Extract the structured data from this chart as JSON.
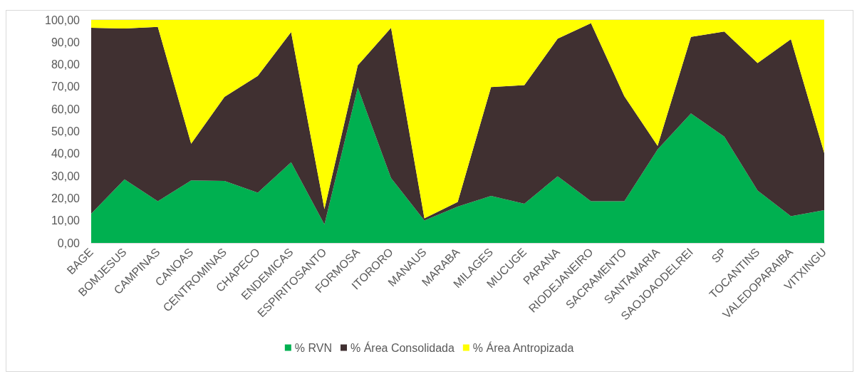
{
  "chart_data": {
    "type": "area",
    "stacked": true,
    "categories": [
      "BAGE",
      "BOMJESUS",
      "CAMPINAS",
      "CANOAS",
      "CENTROMINAS",
      "CHAPECO",
      "ENDEMICAS",
      "ESPIRITOSANTO",
      "FORMOSA",
      "ITORORO",
      "MANAUS",
      "MARABA",
      "MILAGES",
      "MUCUGE",
      "PARANA",
      "RIODEJANEIRO",
      "SACRAMENTO",
      "SANTAMARIA",
      "SAOJOAODELREI",
      "SP",
      "TOCANTINS",
      "VALEDOPARAIBA",
      "VITXINGU"
    ],
    "series": [
      {
        "name": "% RVN",
        "color": "#00b050",
        "values": [
          13.1,
          28.5,
          18.7,
          28.0,
          27.8,
          22.5,
          36.2,
          8.3,
          69.7,
          29.1,
          10.1,
          16.3,
          21.1,
          17.6,
          29.9,
          18.7,
          18.7,
          41.9,
          58.1,
          47.7,
          23.5,
          12.0,
          14.7
        ]
      },
      {
        "name": "% Área Consolidada",
        "color": "#403031",
        "values": [
          83.4,
          67.7,
          78.2,
          16.5,
          37.7,
          52.4,
          58.4,
          6.9,
          9.9,
          67.4,
          0.9,
          2.1,
          48.8,
          53.2,
          61.7,
          79.9,
          47.1,
          1.6,
          34.3,
          47.1,
          57.2,
          79.4,
          25.6
        ]
      },
      {
        "name": "% Área Antropizada",
        "color": "#ffff00",
        "values": [
          3.5,
          3.8,
          3.1,
          55.5,
          34.5,
          25.1,
          5.4,
          84.8,
          20.4,
          3.5,
          89.0,
          81.6,
          30.1,
          29.2,
          8.4,
          1.4,
          34.2,
          56.5,
          7.6,
          5.2,
          19.3,
          8.6,
          59.7
        ]
      }
    ],
    "ylim": [
      0,
      100
    ],
    "yticks": [
      {
        "value": 0,
        "label": "0,00"
      },
      {
        "value": 10,
        "label": "10,00"
      },
      {
        "value": 20,
        "label": "20,00"
      },
      {
        "value": 30,
        "label": "30,00"
      },
      {
        "value": 40,
        "label": "40,00"
      },
      {
        "value": 50,
        "label": "50,00"
      },
      {
        "value": 60,
        "label": "60,00"
      },
      {
        "value": 70,
        "label": "70,00"
      },
      {
        "value": 80,
        "label": "80,00"
      },
      {
        "value": 90,
        "label": "90,00"
      },
      {
        "value": 100,
        "label": "100,00"
      }
    ],
    "grid": "y",
    "legend": "bottom"
  }
}
